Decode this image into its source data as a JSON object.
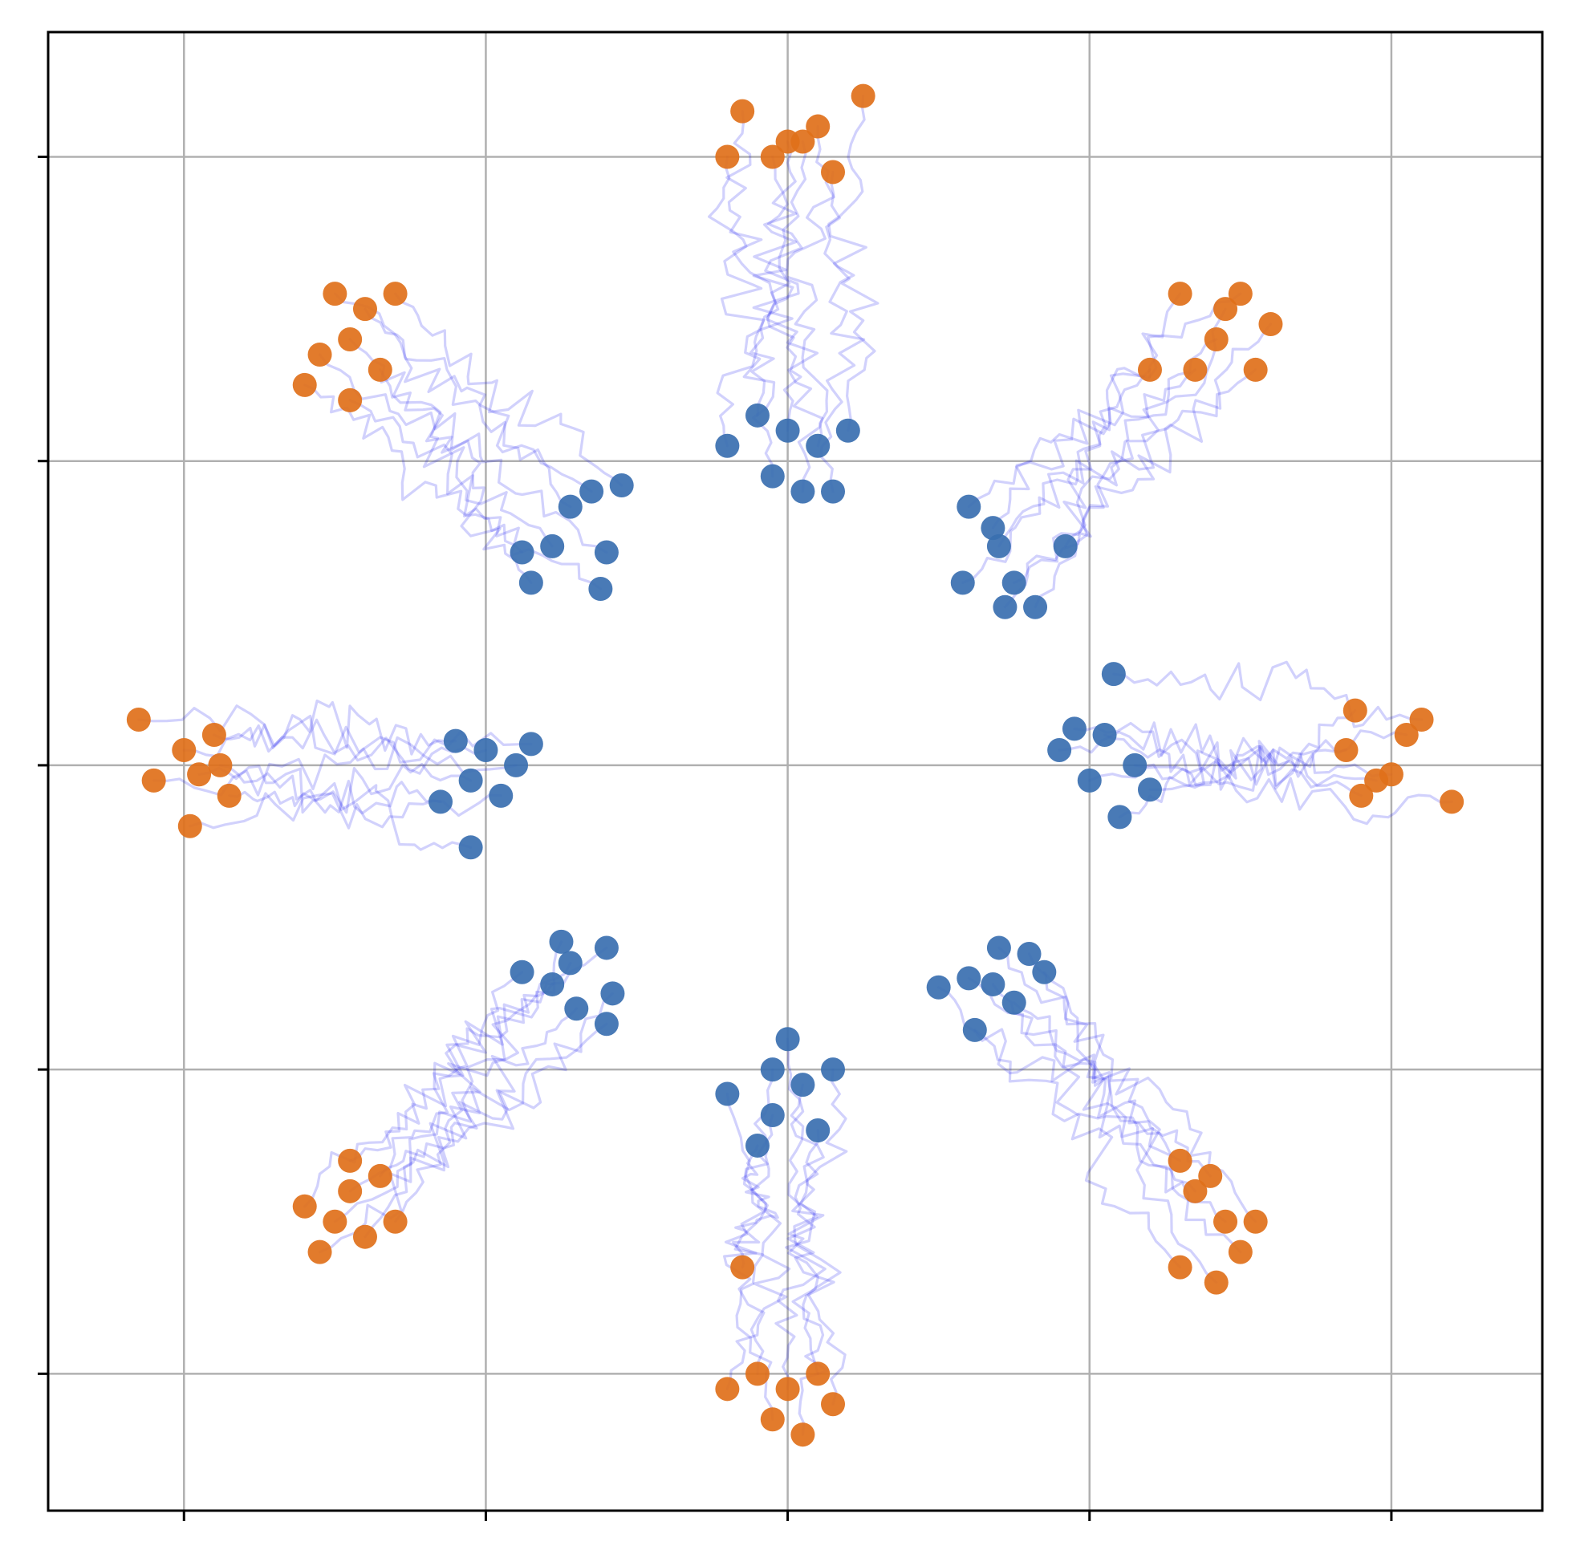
{
  "chart_data": {
    "type": "scatter",
    "title": "",
    "xlabel": "",
    "ylabel": "",
    "xlim": [
      -2.45,
      2.5
    ],
    "ylim": [
      -2.45,
      2.41
    ],
    "xticks": [
      -2,
      -1,
      0,
      1,
      2
    ],
    "yticks": [
      -2,
      -1,
      0,
      1,
      2
    ],
    "tick_labels_shown": false,
    "grid": true,
    "legend": "none",
    "colors": {
      "start_points": "#3a6fb0",
      "end_points": "#e0701a",
      "trajectories": "#1a1aee",
      "grid": "#b0b0b0"
    },
    "series": [
      {
        "role": "start",
        "values": [
          [
            0.9,
            0.05
          ],
          [
            0.95,
            0.12
          ],
          [
            1.0,
            -0.05
          ],
          [
            1.05,
            0.1
          ],
          [
            1.15,
            0.0
          ],
          [
            1.08,
            0.3
          ],
          [
            1.1,
            -0.17
          ],
          [
            1.2,
            -0.08
          ],
          [
            0.7,
            0.72
          ],
          [
            0.6,
            0.85
          ],
          [
            0.58,
            0.6
          ],
          [
            0.75,
            0.6
          ],
          [
            0.82,
            0.52
          ],
          [
            0.68,
            0.78
          ],
          [
            0.92,
            0.72
          ],
          [
            0.72,
            0.52
          ],
          [
            -0.1,
            1.15
          ],
          [
            0.0,
            1.1
          ],
          [
            0.1,
            1.05
          ],
          [
            -0.05,
            0.95
          ],
          [
            0.15,
            0.9
          ],
          [
            -0.2,
            1.05
          ],
          [
            0.2,
            1.1
          ],
          [
            0.05,
            0.9
          ],
          [
            -0.78,
            0.72
          ],
          [
            -0.65,
            0.9
          ],
          [
            -0.85,
            0.6
          ],
          [
            -0.6,
            0.7
          ],
          [
            -0.72,
            0.85
          ],
          [
            -0.55,
            0.92
          ],
          [
            -0.88,
            0.7
          ],
          [
            -0.62,
            0.58
          ],
          [
            -1.0,
            0.05
          ],
          [
            -1.1,
            0.08
          ],
          [
            -0.9,
            0.0
          ],
          [
            -1.15,
            -0.12
          ],
          [
            -1.05,
            -0.05
          ],
          [
            -0.85,
            0.07
          ],
          [
            -0.95,
            -0.1
          ],
          [
            -1.05,
            -0.27
          ],
          [
            -0.72,
            -0.65
          ],
          [
            -0.6,
            -0.6
          ],
          [
            -0.7,
            -0.8
          ],
          [
            -0.88,
            -0.68
          ],
          [
            -0.58,
            -0.75
          ],
          [
            -0.75,
            -0.58
          ],
          [
            -0.6,
            -0.85
          ],
          [
            -0.78,
            -0.72
          ],
          [
            -0.05,
            -1.0
          ],
          [
            0.05,
            -1.05
          ],
          [
            0.0,
            -0.9
          ],
          [
            -0.2,
            -1.08
          ],
          [
            0.15,
            -1.0
          ],
          [
            -0.05,
            -1.15
          ],
          [
            0.1,
            -1.2
          ],
          [
            -0.1,
            -1.25
          ],
          [
            0.7,
            -0.6
          ],
          [
            0.6,
            -0.7
          ],
          [
            0.75,
            -0.78
          ],
          [
            0.85,
            -0.68
          ],
          [
            0.5,
            -0.73
          ],
          [
            0.62,
            -0.87
          ],
          [
            0.8,
            -0.62
          ],
          [
            0.68,
            -0.72
          ]
        ]
      },
      {
        "role": "end",
        "values": [
          [
            1.85,
            0.05
          ],
          [
            1.95,
            -0.05
          ],
          [
            2.05,
            0.1
          ],
          [
            1.9,
            -0.1
          ],
          [
            2.0,
            -0.03
          ],
          [
            2.1,
            0.15
          ],
          [
            1.88,
            0.18
          ],
          [
            2.2,
            -0.12
          ],
          [
            1.42,
            1.4
          ],
          [
            1.5,
            1.55
          ],
          [
            1.35,
            1.3
          ],
          [
            1.55,
            1.3
          ],
          [
            1.45,
            1.5
          ],
          [
            1.3,
            1.55
          ],
          [
            1.6,
            1.45
          ],
          [
            1.2,
            1.3
          ],
          [
            -0.15,
            2.15
          ],
          [
            0.0,
            2.05
          ],
          [
            0.1,
            2.1
          ],
          [
            -0.05,
            2.0
          ],
          [
            0.15,
            1.95
          ],
          [
            -0.2,
            2.0
          ],
          [
            0.25,
            2.2
          ],
          [
            0.05,
            2.05
          ],
          [
            -1.45,
            1.4
          ],
          [
            -1.5,
            1.55
          ],
          [
            -1.35,
            1.3
          ],
          [
            -1.55,
            1.35
          ],
          [
            -1.4,
            1.5
          ],
          [
            -1.3,
            1.55
          ],
          [
            -1.6,
            1.25
          ],
          [
            -1.45,
            1.2
          ],
          [
            -2.0,
            0.05
          ],
          [
            -1.9,
            0.1
          ],
          [
            -2.1,
            -0.05
          ],
          [
            -1.85,
            -0.1
          ],
          [
            -1.95,
            -0.03
          ],
          [
            -2.15,
            0.15
          ],
          [
            -1.98,
            -0.2
          ],
          [
            -1.88,
            0.0
          ],
          [
            -1.45,
            -1.4
          ],
          [
            -1.5,
            -1.5
          ],
          [
            -1.35,
            -1.35
          ],
          [
            -1.6,
            -1.45
          ],
          [
            -1.4,
            -1.55
          ],
          [
            -1.3,
            -1.5
          ],
          [
            -1.55,
            -1.6
          ],
          [
            -1.45,
            -1.3
          ],
          [
            -0.1,
            -2.0
          ],
          [
            0.0,
            -2.05
          ],
          [
            0.1,
            -2.0
          ],
          [
            -0.05,
            -2.15
          ],
          [
            0.15,
            -2.1
          ],
          [
            -0.2,
            -2.05
          ],
          [
            0.05,
            -2.2
          ],
          [
            -0.15,
            -1.65
          ],
          [
            1.35,
            -1.4
          ],
          [
            1.45,
            -1.5
          ],
          [
            1.4,
            -1.35
          ],
          [
            1.55,
            -1.5
          ],
          [
            1.3,
            -1.3
          ],
          [
            1.5,
            -1.6
          ],
          [
            1.42,
            -1.7
          ],
          [
            1.3,
            -1.65
          ]
        ]
      }
    ]
  }
}
